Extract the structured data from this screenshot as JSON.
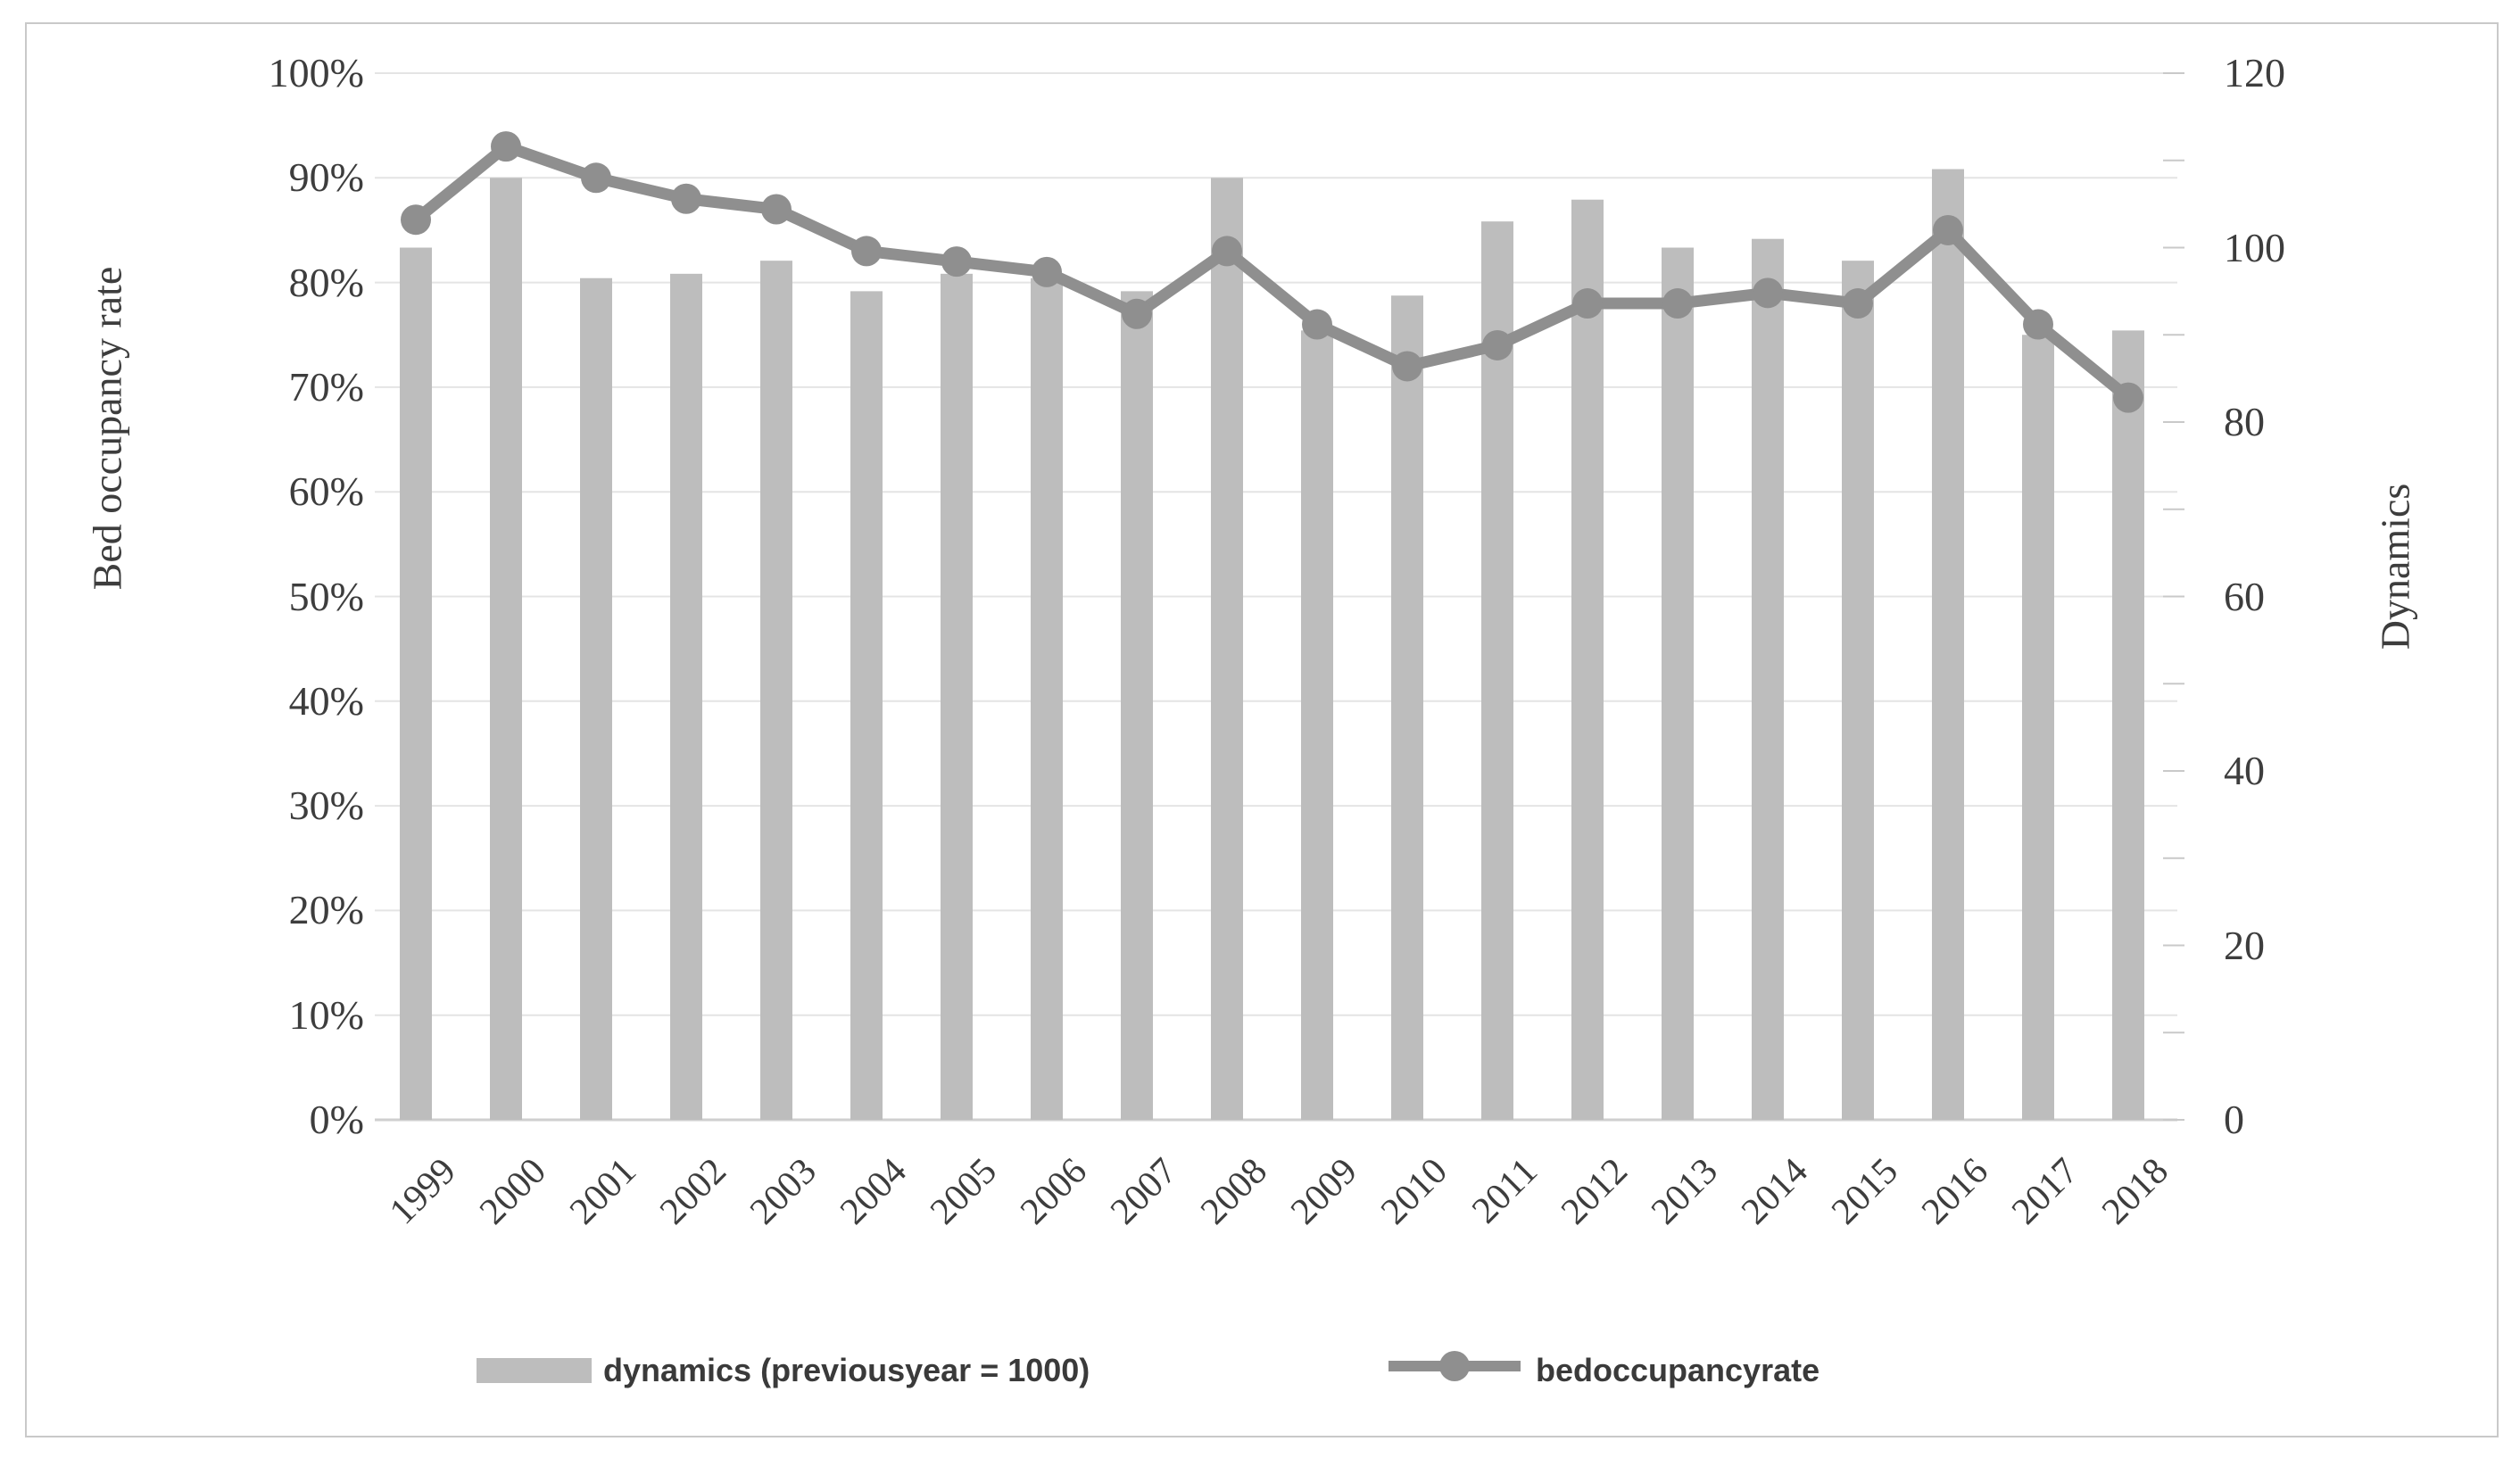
{
  "colors": {
    "bar": "#bdbdbd",
    "line": "#8f8f8f",
    "gridline": "#e4e4e4",
    "baseline": "#cfcfcf",
    "axis_tick": "#c9c9c9",
    "text": "#3d3d3d",
    "legend_text": "#3a3a3a",
    "frame_border": "#c9c9c9",
    "background": "#ffffff"
  },
  "chart_data": {
    "type": "combo_bar_line",
    "title": "",
    "categories": [
      "1999",
      "2000",
      "2001",
      "2002",
      "2003",
      "2004",
      "2005",
      "2006",
      "2007",
      "2008",
      "2009",
      "2010",
      "2011",
      "2012",
      "2013",
      "2014",
      "2015",
      "2016",
      "2017",
      "2018"
    ],
    "series": [
      {
        "name": "dynamics (previousyear = 1000)",
        "type": "bar",
        "axis": "right",
        "values": [
          100,
          108,
          96.5,
          97,
          98.5,
          95,
          97,
          96.5,
          95,
          108,
          90.5,
          94.5,
          103,
          105.5,
          100,
          101,
          98.5,
          109,
          90,
          90.5
        ]
      },
      {
        "name": "bedoccupancyrate",
        "type": "line",
        "axis": "left",
        "values": [
          86,
          93,
          90,
          88,
          87,
          83,
          82,
          81,
          77,
          83,
          76,
          72,
          74,
          78,
          78,
          79,
          78,
          85,
          76,
          69
        ]
      }
    ],
    "left_axis": {
      "label": "Bed occupancy rate",
      "min": 0,
      "max": 100,
      "tick_labels": [
        "100%",
        "90%",
        "80%",
        "70%",
        "60%",
        "50%",
        "40%",
        "30%",
        "20%",
        "10%",
        "0%"
      ],
      "tick_values": [
        100,
        90,
        80,
        70,
        60,
        50,
        40,
        30,
        20,
        10,
        0
      ]
    },
    "right_axis": {
      "label": "Dynamics",
      "min": 0,
      "max": 120,
      "tick_labels": [
        "120",
        "100",
        "80",
        "60",
        "40",
        "20",
        "0"
      ],
      "tick_values": [
        120,
        100,
        80,
        60,
        40,
        20,
        0
      ],
      "minor_tick_step": 10
    },
    "grid": true,
    "legend_position": "bottom"
  }
}
